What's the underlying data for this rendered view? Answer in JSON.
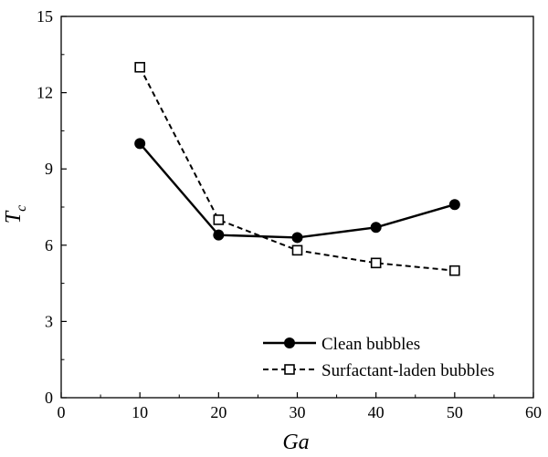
{
  "chart_data": {
    "type": "line",
    "x": [
      10,
      20,
      30,
      40,
      50
    ],
    "series": [
      {
        "name": "Clean bubbles",
        "values": [
          10.0,
          6.4,
          6.3,
          6.7,
          7.6
        ],
        "marker": "filled-circle",
        "line": "solid",
        "color": "#000000"
      },
      {
        "name": "Surfactant-laden bubbles",
        "values": [
          13.0,
          7.0,
          5.8,
          5.3,
          5.0
        ],
        "marker": "open-square",
        "line": "dashed",
        "color": "#000000"
      }
    ],
    "xlabel_main": "Ga",
    "ylabel_main": "T",
    "ylabel_sub": "c",
    "xlim": [
      0,
      60
    ],
    "ylim": [
      0,
      15
    ],
    "xticks": [
      0,
      10,
      20,
      30,
      40,
      50,
      60
    ],
    "yticks": [
      0,
      3,
      6,
      9,
      12,
      15
    ],
    "grid": false,
    "legend_position": "bottom-right"
  }
}
